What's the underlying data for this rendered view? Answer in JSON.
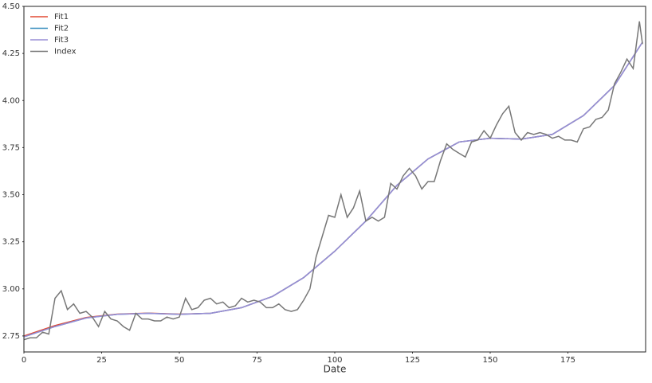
{
  "chart_data": {
    "type": "line",
    "xlabel": "Date",
    "xlim": [
      0,
      200
    ],
    "ylim": [
      2.665,
      4.5
    ],
    "xticks": [
      0,
      25,
      50,
      75,
      100,
      125,
      150,
      175
    ],
    "yticks": [
      2.75,
      {
        "value": 3.0,
        "label": "3.00"
      },
      3.25,
      {
        "value": 3.5,
        "label": "3.50"
      },
      3.75,
      {
        "value": 4.0,
        "label": "4.00"
      },
      4.25,
      {
        "value": 4.5,
        "label": "4.50"
      }
    ],
    "grid": false,
    "legend": "upper left",
    "series": [
      {
        "name": "Fit1",
        "color": "#e24a33",
        "x": [
          0,
          10,
          20,
          30,
          40,
          50,
          60,
          70,
          80,
          90,
          100,
          110,
          120,
          130,
          140,
          150,
          160,
          170,
          180,
          190,
          199
        ],
        "values": [
          2.75,
          2.805,
          2.848,
          2.866,
          2.871,
          2.866,
          2.87,
          2.9,
          2.96,
          3.06,
          3.2,
          3.36,
          3.55,
          3.69,
          3.78,
          3.8,
          3.795,
          3.82,
          3.92,
          4.08,
          4.31
        ]
      },
      {
        "name": "Fit2",
        "color": "#348abd",
        "x": [
          0,
          10,
          20,
          30,
          40,
          50,
          60,
          70,
          80,
          90,
          100,
          110,
          120,
          130,
          140,
          150,
          160,
          170,
          180,
          190,
          199
        ],
        "values": [
          2.745,
          2.8,
          2.845,
          2.865,
          2.87,
          2.865,
          2.87,
          2.9,
          2.96,
          3.06,
          3.2,
          3.36,
          3.55,
          3.69,
          3.78,
          3.8,
          3.795,
          3.82,
          3.92,
          4.08,
          4.31
        ]
      },
      {
        "name": "Fit3",
        "color": "#988ed5",
        "x": [
          0,
          10,
          20,
          30,
          40,
          50,
          60,
          70,
          80,
          90,
          100,
          110,
          120,
          130,
          140,
          150,
          160,
          170,
          180,
          190,
          199
        ],
        "values": [
          2.745,
          2.8,
          2.845,
          2.865,
          2.87,
          2.865,
          2.87,
          2.9,
          2.96,
          3.06,
          3.2,
          3.36,
          3.55,
          3.69,
          3.78,
          3.8,
          3.795,
          3.82,
          3.92,
          4.08,
          4.31
        ]
      },
      {
        "name": "Index",
        "color": "#777777",
        "x": [
          0,
          2,
          4,
          6,
          8,
          10,
          12,
          14,
          16,
          18,
          20,
          22,
          24,
          26,
          28,
          30,
          32,
          34,
          36,
          38,
          40,
          42,
          44,
          46,
          48,
          50,
          52,
          54,
          56,
          58,
          60,
          62,
          64,
          66,
          68,
          70,
          72,
          74,
          76,
          78,
          80,
          82,
          84,
          86,
          88,
          90,
          92,
          94,
          96,
          98,
          100,
          102,
          104,
          106,
          108,
          110,
          112,
          114,
          116,
          118,
          120,
          122,
          124,
          126,
          128,
          130,
          132,
          134,
          136,
          138,
          140,
          142,
          144,
          146,
          148,
          150,
          152,
          154,
          156,
          158,
          160,
          162,
          164,
          166,
          168,
          170,
          172,
          174,
          176,
          178,
          180,
          182,
          184,
          186,
          188,
          190,
          192,
          194,
          196,
          198,
          199
        ],
        "values": [
          2.73,
          2.74,
          2.74,
          2.77,
          2.76,
          2.95,
          2.99,
          2.89,
          2.92,
          2.87,
          2.88,
          2.85,
          2.8,
          2.88,
          2.84,
          2.83,
          2.8,
          2.78,
          2.87,
          2.84,
          2.84,
          2.83,
          2.83,
          2.85,
          2.84,
          2.85,
          2.95,
          2.89,
          2.9,
          2.94,
          2.95,
          2.92,
          2.93,
          2.9,
          2.91,
          2.95,
          2.93,
          2.94,
          2.93,
          2.9,
          2.9,
          2.92,
          2.89,
          2.88,
          2.89,
          2.94,
          3.0,
          3.17,
          3.28,
          3.39,
          3.38,
          3.5,
          3.38,
          3.43,
          3.52,
          3.36,
          3.38,
          3.36,
          3.38,
          3.56,
          3.53,
          3.6,
          3.64,
          3.6,
          3.53,
          3.57,
          3.57,
          3.68,
          3.77,
          3.74,
          3.72,
          3.7,
          3.78,
          3.79,
          3.84,
          3.8,
          3.87,
          3.93,
          3.97,
          3.83,
          3.79,
          3.83,
          3.82,
          3.83,
          3.82,
          3.8,
          3.81,
          3.79,
          3.79,
          3.78,
          3.85,
          3.86,
          3.9,
          3.91,
          3.95,
          4.09,
          4.15,
          4.22,
          4.17,
          4.42,
          4.3
        ]
      }
    ]
  }
}
